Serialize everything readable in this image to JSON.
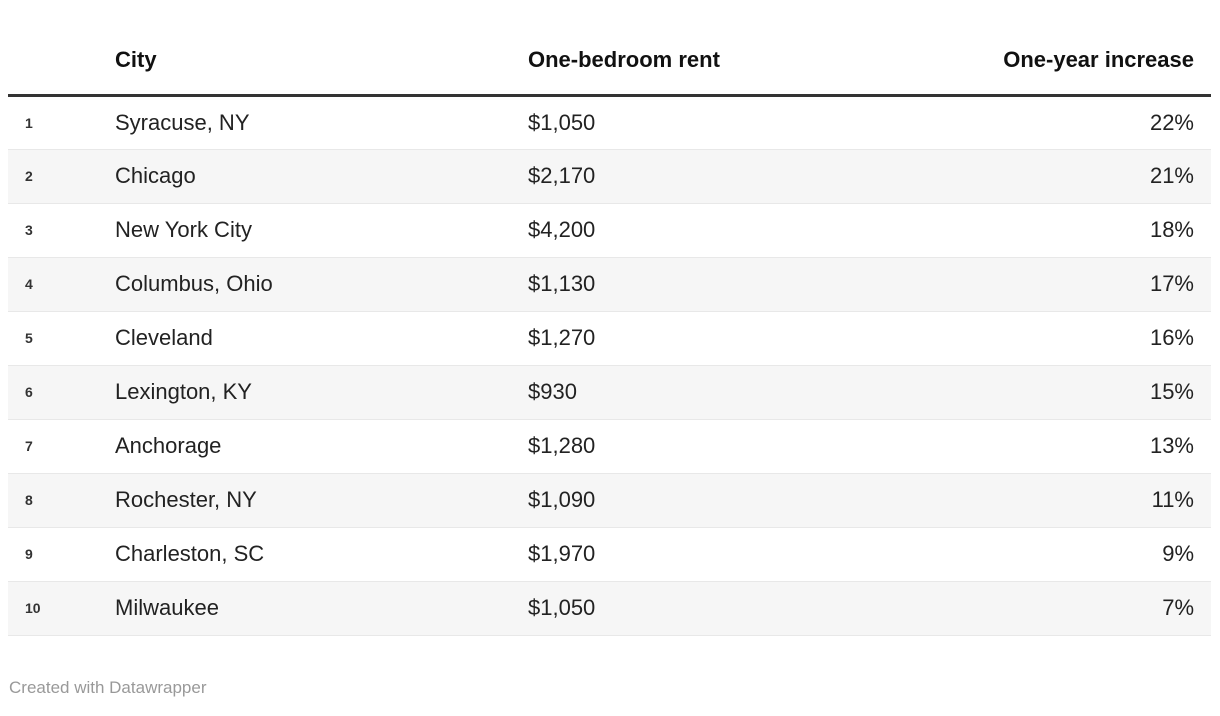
{
  "chart_data": {
    "type": "table",
    "columns": {
      "rank": "",
      "city": "City",
      "rent": "One-bedroom rent",
      "increase": "One-year increase"
    },
    "rows": [
      {
        "rank": "1",
        "city": "Syracuse, NY",
        "rent": "$1,050",
        "increase": "22%"
      },
      {
        "rank": "2",
        "city": "Chicago",
        "rent": "$2,170",
        "increase": "21%"
      },
      {
        "rank": "3",
        "city": "New York City",
        "rent": "$4,200",
        "increase": "18%"
      },
      {
        "rank": "4",
        "city": "Columbus, Ohio",
        "rent": "$1,130",
        "increase": "17%"
      },
      {
        "rank": "5",
        "city": "Cleveland",
        "rent": "$1,270",
        "increase": "16%"
      },
      {
        "rank": "6",
        "city": "Lexington, KY",
        "rent": "$930",
        "increase": "15%"
      },
      {
        "rank": "7",
        "city": "Anchorage",
        "rent": "$1,280",
        "increase": "13%"
      },
      {
        "rank": "8",
        "city": "Rochester, NY",
        "rent": "$1,090",
        "increase": "11%"
      },
      {
        "rank": "9",
        "city": "Charleston, SC",
        "rent": "$1,970",
        "increase": "9%"
      },
      {
        "rank": "10",
        "city": "Milwaukee",
        "rent": "$1,050",
        "increase": "7%"
      }
    ],
    "rent_values_usd": [
      1050,
      2170,
      4200,
      1130,
      1270,
      930,
      1280,
      1090,
      1970,
      1050
    ],
    "increase_values_pct": [
      22,
      21,
      18,
      17,
      16,
      15,
      13,
      11,
      9,
      7
    ],
    "layout_hints": {
      "striped_rows": true,
      "stripe_on": "even",
      "rank_column_bold": true,
      "increase_column_align": "right"
    }
  },
  "footer": {
    "attribution": "Created with Datawrapper"
  },
  "colors": {
    "background": "#ffffff",
    "header_rule": "#333333",
    "row_divider": "#e8e8e8",
    "row_stripe": "#f6f6f6",
    "header_text": "#111111",
    "body_text": "#222222",
    "rank_text": "#333333",
    "footer_text": "#999999"
  }
}
